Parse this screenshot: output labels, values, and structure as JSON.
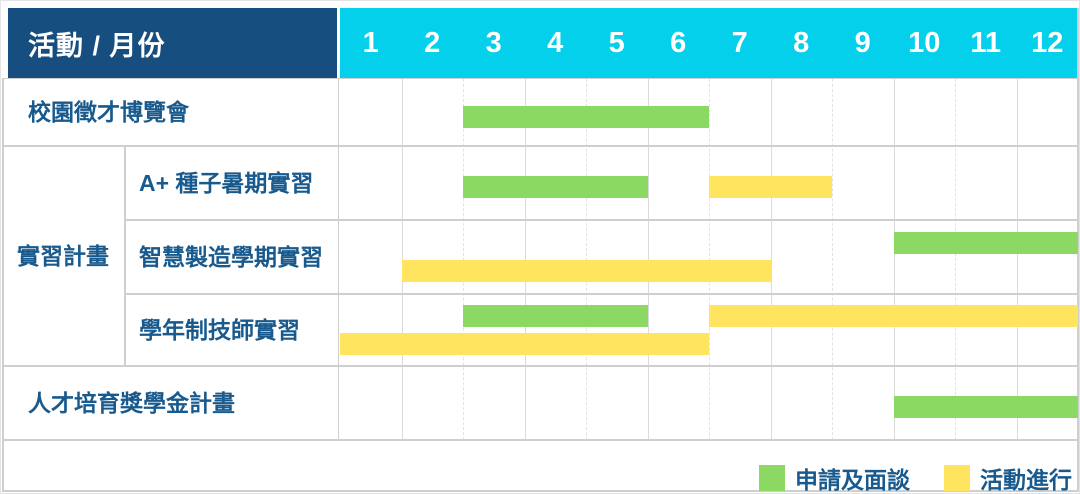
{
  "header": {
    "title": "活動 / 月份",
    "months": [
      "1",
      "2",
      "3",
      "4",
      "5",
      "6",
      "7",
      "8",
      "9",
      "10",
      "11",
      "12"
    ]
  },
  "legend": {
    "items": [
      {
        "label": "申請及面談",
        "color": "#8BD963"
      },
      {
        "label": "活動進行",
        "color": "#FFE45F"
      }
    ]
  },
  "colors": {
    "navy": "#174E80",
    "cyan": "#04D0EC",
    "green": "#8BD963",
    "yellow": "#FFE45F",
    "text_blue": "#185A8D"
  },
  "chart_data": {
    "type": "bar",
    "subtype": "gantt",
    "title": "活動 / 月份",
    "x_axis": {
      "ticks": [
        1,
        2,
        3,
        4,
        5,
        6,
        7,
        8,
        9,
        10,
        11,
        12
      ],
      "range": [
        1,
        12
      ],
      "unit": "月"
    },
    "legend_position": "bottom-right",
    "series_legend": [
      {
        "name": "申請及面談",
        "color": "#8BD963"
      },
      {
        "name": "活動進行",
        "color": "#FFE45F"
      }
    ],
    "rows": [
      {
        "label": "校園徵才博覽會",
        "group": "",
        "bars": [
          {
            "series": "申請及面談",
            "start_month": 3,
            "end_month": 6,
            "line": 0
          }
        ]
      },
      {
        "label": "A+ 種子暑期實習",
        "group": "實習計畫",
        "bars": [
          {
            "series": "申請及面談",
            "start_month": 3,
            "end_month": 5,
            "line": 0
          },
          {
            "series": "活動進行",
            "start_month": 7,
            "end_month": 8,
            "line": 0
          }
        ]
      },
      {
        "label": "智慧製造學期實習",
        "group": "實習計畫",
        "bars": [
          {
            "series": "申請及面談",
            "start_month": 10,
            "end_month": 12,
            "line": 0
          },
          {
            "series": "活動進行",
            "start_month": 2,
            "end_month": 7,
            "line": 1
          }
        ]
      },
      {
        "label": "學年制技師實習",
        "group": "實習計畫",
        "bars": [
          {
            "series": "申請及面談",
            "start_month": 3,
            "end_month": 5,
            "line": 0
          },
          {
            "series": "活動進行",
            "start_month": 7,
            "end_month": 12,
            "line": 0
          },
          {
            "series": "活動進行",
            "start_month": 1,
            "end_month": 6,
            "line": 1
          }
        ]
      },
      {
        "label": "人才培育獎學金計畫",
        "group": "",
        "bars": [
          {
            "series": "申請及面談",
            "start_month": 10,
            "end_month": 12,
            "line": 0
          }
        ]
      }
    ]
  }
}
